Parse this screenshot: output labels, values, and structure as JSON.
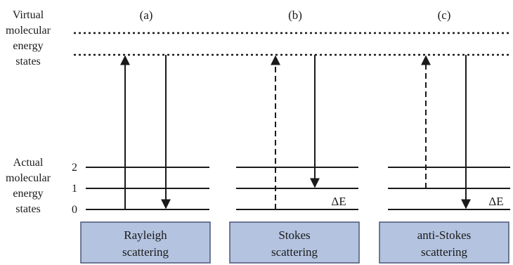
{
  "virtual_label": [
    "Virtual",
    "molecular",
    "energy",
    "states"
  ],
  "actual_label": [
    "Actual",
    "molecular",
    "energy",
    "states"
  ],
  "level_numbers": [
    "2",
    "1",
    "0"
  ],
  "panels": [
    {
      "tag": "(a)",
      "box_line1": "Rayleigh",
      "box_line2": "scattering",
      "delta": ""
    },
    {
      "tag": "(b)",
      "box_line1": "Stokes",
      "box_line2": "scattering",
      "delta": "ΔE"
    },
    {
      "tag": "(c)",
      "box_line1": "anti-Stokes",
      "box_line2": "scattering",
      "delta": "ΔE"
    }
  ],
  "colors": {
    "box_fill": "#b4c3df",
    "box_stroke": "#4a5578",
    "line": "#1a1a1a"
  }
}
